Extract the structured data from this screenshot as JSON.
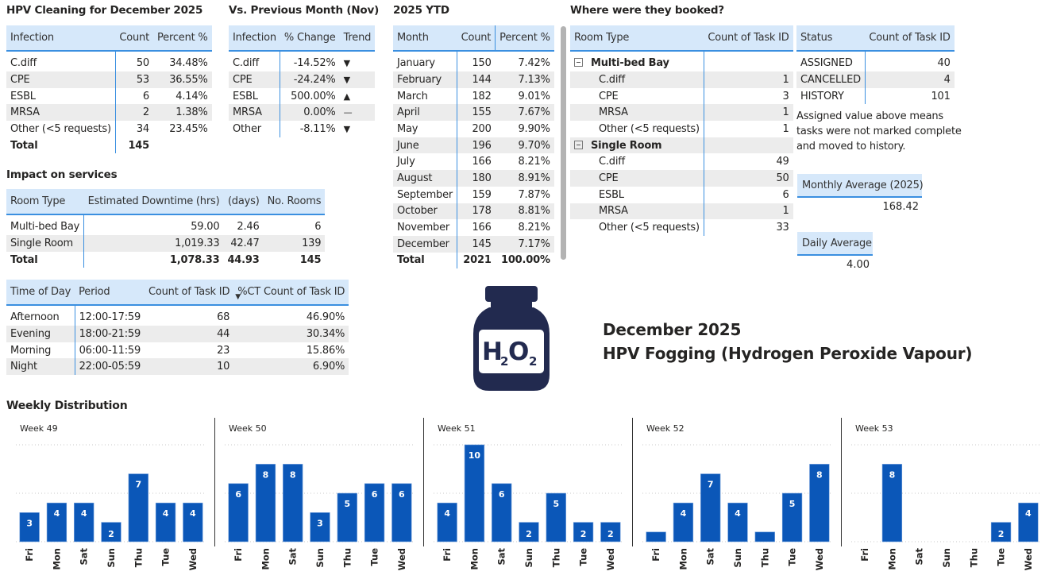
{
  "infection_table": {
    "title": "HPV Cleaning for December 2025",
    "headers": [
      "Infection",
      "Count",
      "Percent %"
    ],
    "rows": [
      [
        "C.diff",
        "50",
        "34.48%"
      ],
      [
        "CPE",
        "53",
        "36.55%"
      ],
      [
        "ESBL",
        "6",
        "4.14%"
      ],
      [
        "MRSA",
        "2",
        "1.38%"
      ],
      [
        "Other (<5 requests)",
        "34",
        "23.45%"
      ]
    ],
    "total": [
      "Total",
      "145",
      ""
    ]
  },
  "prev_month_table": {
    "title": "Vs. Previous Month (Nov)",
    "headers": [
      "Infection",
      "% Change",
      "Trend"
    ],
    "rows": [
      [
        "C.diff",
        "-14.52%",
        "▼"
      ],
      [
        "CPE",
        "-24.24%",
        "▼"
      ],
      [
        "ESBL",
        "500.00%",
        "▲"
      ],
      [
        "MRSA",
        "0.00%",
        "—"
      ],
      [
        "Other",
        "-8.11%",
        "▼"
      ]
    ]
  },
  "ytd_table": {
    "title": "2025 YTD",
    "headers": [
      "Month",
      "Count",
      "Percent %"
    ],
    "rows": [
      [
        "January",
        "150",
        "7.42%"
      ],
      [
        "February",
        "144",
        "7.13%"
      ],
      [
        "March",
        "182",
        "9.01%"
      ],
      [
        "April",
        "155",
        "7.67%"
      ],
      [
        "May",
        "200",
        "9.90%"
      ],
      [
        "June",
        "196",
        "9.70%"
      ],
      [
        "July",
        "166",
        "8.21%"
      ],
      [
        "August",
        "180",
        "8.91%"
      ],
      [
        "September",
        "159",
        "7.87%"
      ],
      [
        "October",
        "178",
        "8.81%"
      ],
      [
        "November",
        "166",
        "8.21%"
      ],
      [
        "December",
        "145",
        "7.17%"
      ]
    ],
    "total": [
      "Total",
      "2021",
      "100.00%"
    ]
  },
  "booked_table": {
    "title": "Where were they booked?",
    "headers": [
      "Room Type",
      "Count of Task ID"
    ],
    "groups": [
      {
        "name": "Multi-bed Bay",
        "rows": [
          [
            "C.diff",
            "1"
          ],
          [
            "CPE",
            "3"
          ],
          [
            "MRSA",
            "1"
          ],
          [
            "Other (<5 requests)",
            "1"
          ]
        ]
      },
      {
        "name": "Single Room",
        "rows": [
          [
            "C.diff",
            "49"
          ],
          [
            "CPE",
            "50"
          ],
          [
            "ESBL",
            "6"
          ],
          [
            "MRSA",
            "1"
          ],
          [
            "Other (<5 requests)",
            "33"
          ]
        ]
      }
    ]
  },
  "status_table": {
    "headers": [
      "Status",
      "Count of Task ID"
    ],
    "rows": [
      [
        "ASSIGNED",
        "40"
      ],
      [
        "CANCELLED",
        "4"
      ],
      [
        "HISTORY",
        "101"
      ]
    ],
    "note": "Assigned value above means tasks were not marked complete and moved to history."
  },
  "cards": {
    "monthly_avg_label": "Monthly Average (2025)",
    "monthly_avg_value": "168.42",
    "daily_avg_label": "Daily Average",
    "daily_avg_value": "4.00"
  },
  "impact_table": {
    "title": "Impact on services",
    "headers": [
      "Room Type",
      "Estimated Downtime (hrs)",
      "(days)",
      "No. Rooms"
    ],
    "rows": [
      [
        "Multi-bed Bay",
        "59.00",
        "2.46",
        "6"
      ],
      [
        "Single Room",
        "1,019.33",
        "42.47",
        "139"
      ]
    ],
    "total": [
      "Total",
      "1,078.33",
      "44.93",
      "145"
    ]
  },
  "time_table": {
    "headers": [
      "Time of Day",
      "Period",
      "Count of Task ID",
      "%CT Count of Task ID"
    ],
    "sort_indicator": "▼",
    "rows": [
      [
        "Afternoon",
        "12:00-17:59",
        "68",
        "46.90%"
      ],
      [
        "Evening",
        "18:00-21:59",
        "44",
        "30.34%"
      ],
      [
        "Morning",
        "06:00-11:59",
        "23",
        "15.86%"
      ],
      [
        "Night",
        "22:00-05:59",
        "10",
        "6.90%"
      ]
    ]
  },
  "hero": {
    "icon": "h2o2-bottle-icon",
    "icon_text_h": "H",
    "icon_text_sub1": "2",
    "icon_text_o": "O",
    "icon_text_sub2": "2",
    "line1": "December 2025",
    "line2": "HPV Fogging (Hydrogen Peroxide Vapour)",
    "icon_color": "#222a4f"
  },
  "weekly_title": "Weekly Distribution",
  "chart_data": {
    "type": "bar",
    "title": "Weekly Distribution",
    "categories": [
      "Fri",
      "Mon",
      "Sat",
      "Sun",
      "Thu",
      "Tue",
      "Wed"
    ],
    "ylim": [
      0,
      10
    ],
    "grid": true,
    "bar_color": "#0b57b8",
    "panels": [
      {
        "name": "Week 49",
        "values": [
          3,
          4,
          4,
          2,
          7,
          4,
          4
        ],
        "labels": [
          "3",
          "4",
          "4",
          "2",
          "7",
          "4",
          "4"
        ]
      },
      {
        "name": "Week 50",
        "values": [
          6,
          8,
          8,
          3,
          5,
          6,
          6
        ],
        "labels": [
          "6",
          "8",
          "8",
          "3",
          "5",
          "6",
          "6"
        ]
      },
      {
        "name": "Week 51",
        "values": [
          4,
          10,
          6,
          2,
          5,
          2,
          2
        ],
        "labels": [
          "4",
          "10",
          "6",
          "2",
          "5",
          "2",
          "2"
        ]
      },
      {
        "name": "Week 52",
        "values": [
          1,
          4,
          7,
          4,
          1,
          5,
          8
        ],
        "labels": [
          "",
          "4",
          "7",
          "4",
          "",
          "5",
          "8"
        ]
      },
      {
        "name": "Week 53",
        "values": [
          0,
          8,
          0,
          0,
          0,
          2,
          4
        ],
        "labels": [
          "",
          "8",
          "",
          "",
          "",
          "2",
          "4"
        ]
      }
    ]
  }
}
